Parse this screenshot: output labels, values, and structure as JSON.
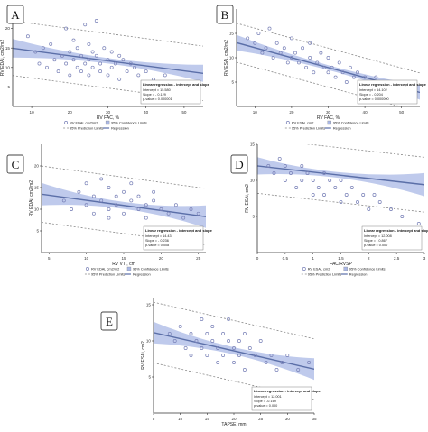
{
  "colors": {
    "regression": "#5b6fa8",
    "confidence": "#aab8e6",
    "prediction": "#8a8a8a",
    "point": "#7a82b8",
    "axis": "#333333"
  },
  "common": {
    "stats_title": "Linear regression - intercept and slope",
    "legend": {
      "ci": "95% Confidence Limits",
      "pi": "95% Prediction Limits",
      "reg": "Regression"
    }
  },
  "chart_data": [
    {
      "type": "scatter",
      "panel": "A",
      "xlabel": "RV FAC, %",
      "ylabel": "RV EDAi, cm2/m2",
      "xlim": [
        5,
        55
      ],
      "ylim": [
        0,
        25
      ],
      "xticks": [
        "10",
        "20",
        "30",
        "40",
        "50"
      ],
      "xtick_values": [
        10,
        20,
        30,
        40,
        50
      ],
      "yticks": [
        "5",
        "10",
        "15",
        "20"
      ],
      "ytick_values": [
        5,
        10,
        15,
        20
      ],
      "stats": {
        "intercept": "Intercept = 15.580",
        "slope": "Slope = - 0.129",
        "pvalue": "p-value = 0.000001"
      },
      "legend_point": "RV EDAi, cm2/m2",
      "regression": {
        "intercept": 15.58,
        "slope": -0.129
      },
      "ci_half_width": [
        2.4,
        0.7,
        2.2
      ],
      "pi_half_width": 7.0,
      "x": [
        9,
        11,
        12,
        13,
        14,
        15,
        16,
        17,
        18,
        19,
        19,
        20,
        20,
        21,
        21,
        22,
        22,
        23,
        23,
        24,
        24,
        25,
        25,
        25,
        26,
        26,
        27,
        27,
        28,
        28,
        29,
        30,
        30,
        31,
        31,
        32,
        33,
        33,
        34,
        35,
        36,
        37,
        38,
        40,
        42,
        45,
        50
      ],
      "y": [
        18,
        14,
        11,
        15,
        10,
        16,
        12,
        9,
        13,
        20,
        11,
        14,
        8,
        17,
        12,
        10,
        15,
        13,
        9,
        21,
        11,
        16,
        12,
        8,
        14,
        10,
        13,
        22,
        11,
        9,
        15,
        12,
        8,
        14,
        10,
        11,
        13,
        7,
        12,
        9,
        11,
        10,
        8,
        9,
        7,
        8,
        6
      ]
    },
    {
      "type": "scatter",
      "panel": "B",
      "xlabel": "RV FAC, %",
      "ylabel": "RV ESAi, cm2/m2",
      "xlim": [
        5,
        55
      ],
      "ylim": [
        0,
        20
      ],
      "xticks": [
        "10",
        "20",
        "30",
        "40",
        "50"
      ],
      "xtick_values": [
        10,
        20,
        30,
        40,
        50
      ],
      "yticks": [
        "5",
        "10",
        "15"
      ],
      "ytick_values": [
        5,
        10,
        15
      ],
      "stats": {
        "intercept": "Intercept = 14.102",
        "slope": "Slope = - 0.204",
        "pvalue": "p-value = 0.000000"
      },
      "legend_point": "RV ESAi, cm2",
      "regression": {
        "intercept": 14.102,
        "slope": -0.204
      },
      "ci_half_width": [
        1.6,
        0.5,
        1.5
      ],
      "pi_half_width": 4.0,
      "x": [
        8,
        10,
        11,
        12,
        13,
        14,
        15,
        16,
        17,
        18,
        19,
        20,
        20,
        21,
        22,
        23,
        24,
        25,
        25,
        26,
        27,
        28,
        29,
        30,
        30,
        31,
        32,
        33,
        34,
        35,
        36,
        37,
        38,
        39,
        40,
        41,
        42,
        43,
        44,
        45,
        46,
        47,
        48,
        50,
        52
      ],
      "y": [
        14,
        13,
        15,
        11,
        12,
        16,
        10,
        13,
        11,
        12,
        9,
        14,
        10,
        11,
        9,
        12,
        8,
        10,
        13,
        7,
        9,
        11,
        8,
        7,
        10,
        8,
        6,
        9,
        7,
        5,
        8,
        6,
        7,
        5,
        6,
        4,
        5,
        6,
        4,
        5,
        3,
        4,
        2,
        3,
        2
      ]
    },
    {
      "type": "scatter",
      "panel": "C",
      "xlabel": "RV VTI, cm",
      "ylabel": "RV EDAi, cm2/m2",
      "xlim": [
        4,
        26
      ],
      "ylim": [
        0,
        25
      ],
      "xticks": [
        "5",
        "10",
        "15",
        "20",
        "25"
      ],
      "xtick_values": [
        5,
        10,
        15,
        20,
        25
      ],
      "yticks": [
        "5",
        "10",
        "15",
        "20"
      ],
      "ytick_values": [
        5,
        10,
        15,
        20
      ],
      "stats": {
        "intercept": "Intercept = 14.43",
        "slope": "Slope = - 0.236",
        "pvalue": "p-value = 0.008"
      },
      "legend_point": "RV EDAi, cm2/m2",
      "regression": {
        "intercept": 14.43,
        "slope": -0.236
      },
      "ci_half_width": [
        2.6,
        0.8,
        2.6
      ],
      "pi_half_width": 6.5,
      "x": [
        7,
        8,
        9,
        10,
        10,
        11,
        11,
        12,
        12,
        13,
        13,
        13,
        14,
        14,
        15,
        15,
        16,
        16,
        17,
        17,
        18,
        18,
        19,
        19,
        20,
        21,
        22,
        23,
        24,
        25
      ],
      "y": [
        12,
        10,
        14,
        16,
        11,
        13,
        9,
        17,
        12,
        15,
        10,
        8,
        13,
        11,
        14,
        9,
        12,
        16,
        10,
        13,
        11,
        8,
        12,
        14,
        10,
        9,
        11,
        8,
        10,
        9
      ]
    },
    {
      "type": "scatter",
      "panel": "D",
      "xlabel": "FAC/RVSP",
      "ylabel": "RV ESAi, cm2",
      "xlim": [
        0,
        3
      ],
      "ylim": [
        0,
        15
      ],
      "xticks": [
        "0",
        "0.5",
        "1",
        "1.5",
        "2",
        "2.5",
        "3"
      ],
      "xtick_values": [
        0,
        0.5,
        1,
        1.5,
        2,
        2.5,
        3
      ],
      "yticks": [
        "5",
        "10",
        "15"
      ],
      "ytick_values": [
        5,
        10,
        15
      ],
      "stats": {
        "intercept": "Intercept = 12.008",
        "slope": "Slope = - 0.867",
        "pvalue": "p-value = 0.000"
      },
      "legend_point": "RV ESAi, cm2",
      "regression": {
        "intercept": 12.008,
        "slope": -0.867
      },
      "ci_half_width": [
        1.2,
        0.4,
        1.6
      ],
      "pi_half_width": 3.8,
      "x": [
        0.2,
        0.3,
        0.4,
        0.5,
        0.5,
        0.6,
        0.7,
        0.8,
        0.8,
        0.9,
        1.0,
        1.0,
        1.1,
        1.2,
        1.2,
        1.3,
        1.4,
        1.5,
        1.5,
        1.6,
        1.7,
        1.8,
        1.9,
        2.0,
        2.1,
        2.2,
        2.4,
        2.6,
        2.9
      ],
      "y": [
        12,
        11,
        13,
        10,
        12,
        11,
        9,
        12,
        10,
        11,
        8,
        10,
        9,
        11,
        8,
        10,
        9,
        7,
        10,
        8,
        9,
        7,
        8,
        6,
        8,
        7,
        6,
        5,
        4
      ]
    },
    {
      "type": "scatter",
      "panel": "E",
      "xlabel": "TAPSE, mm",
      "ylabel": "RV ESAi, cm2",
      "xlim": [
        5,
        35
      ],
      "ylim": [
        0,
        16
      ],
      "xticks": [
        "5",
        "10",
        "15",
        "20",
        "25",
        "30",
        "35"
      ],
      "xtick_values": [
        5,
        10,
        15,
        20,
        25,
        30,
        35
      ],
      "yticks": [
        "5",
        "10",
        "15"
      ],
      "ytick_values": [
        5,
        10,
        15
      ],
      "stats": {
        "intercept": "Intercept = 12.001",
        "slope": "Slope = -0.169",
        "pvalue": "p-value = 0.000"
      },
      "legend_point": "RV ESAi, cm2",
      "regression": {
        "intercept": 12.001,
        "slope": -0.169
      },
      "ci_half_width": [
        1.5,
        0.5,
        1.5
      ],
      "pi_half_width": 4.2,
      "x": [
        8,
        9,
        10,
        11,
        12,
        12,
        13,
        14,
        14,
        15,
        15,
        16,
        16,
        17,
        17,
        18,
        18,
        19,
        19,
        20,
        20,
        21,
        21,
        22,
        22,
        23,
        24,
        25,
        26,
        27,
        28,
        29,
        30,
        32,
        34
      ],
      "y": [
        11,
        10,
        12,
        9,
        11,
        8,
        10,
        13,
        9,
        11,
        8,
        10,
        12,
        9,
        7,
        11,
        8,
        10,
        13,
        9,
        7,
        10,
        8,
        11,
        6,
        9,
        8,
        10,
        7,
        8,
        6,
        7,
        8,
        6,
        7
      ]
    }
  ]
}
